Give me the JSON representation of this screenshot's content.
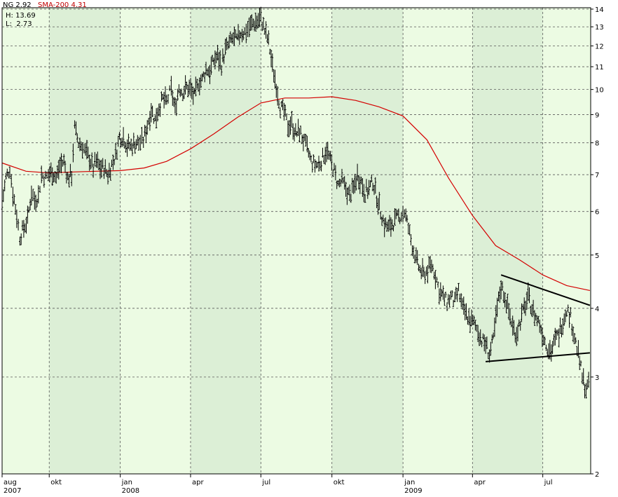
{
  "header": {
    "symbol": "NG 2.92",
    "sma": "SMA-200 4.31",
    "high": "H: 13.69",
    "low": "L:  2.73"
  },
  "colors": {
    "plot_bg_light": "#ecfbe3",
    "plot_bg_dark": "#dcefd6",
    "price": "#000000",
    "sma": "#d40000",
    "grid": "#5a5a5a",
    "trendline": "#000000"
  },
  "chart_data": {
    "type": "line",
    "title": "",
    "xlabel": "",
    "ylabel": "",
    "y_scale": "log",
    "ylim": [
      2,
      14
    ],
    "yticks": [
      2,
      3,
      4,
      5,
      6,
      7,
      8,
      9,
      10,
      11,
      12,
      13,
      14
    ],
    "x_range": [
      "2007-08-01",
      "2009-09-01"
    ],
    "x_month_labels": [
      {
        "label": "aug",
        "year": "2007",
        "date": "2007-08-01"
      },
      {
        "label": "okt",
        "year": "",
        "date": "2007-10-01"
      },
      {
        "label": "jan",
        "year": "2008",
        "date": "2008-01-01"
      },
      {
        "label": "apr",
        "year": "",
        "date": "2008-04-01"
      },
      {
        "label": "jul",
        "year": "",
        "date": "2008-07-01"
      },
      {
        "label": "okt",
        "year": "",
        "date": "2008-10-01"
      },
      {
        "label": "jan",
        "year": "2009",
        "date": "2009-01-01"
      },
      {
        "label": "apr",
        "year": "",
        "date": "2009-04-01"
      },
      {
        "label": "jul",
        "year": "",
        "date": "2009-07-01"
      }
    ],
    "shaded_bands": [
      [
        "2007-10-01",
        "2008-01-01"
      ],
      [
        "2008-04-01",
        "2008-07-01"
      ],
      [
        "2008-10-01",
        "2009-01-01"
      ],
      [
        "2009-04-01",
        "2009-07-01"
      ]
    ],
    "series": [
      {
        "name": "NG",
        "style": "daily OHLC bars",
        "points": [
          [
            "2007-08-01",
            6.2
          ],
          [
            "2007-08-06",
            6.9
          ],
          [
            "2007-08-11",
            7.2
          ],
          [
            "2007-08-15",
            6.5
          ],
          [
            "2007-08-20",
            5.9
          ],
          [
            "2007-08-24",
            5.4
          ],
          [
            "2007-08-29",
            5.6
          ],
          [
            "2007-09-03",
            5.8
          ],
          [
            "2007-09-08",
            6.5
          ],
          [
            "2007-09-12",
            6.3
          ],
          [
            "2007-09-17",
            6.4
          ],
          [
            "2007-09-21",
            7.0
          ],
          [
            "2007-09-26",
            6.9
          ],
          [
            "2007-09-30",
            7.0
          ],
          [
            "2007-10-05",
            7.1
          ],
          [
            "2007-10-10",
            6.9
          ],
          [
            "2007-10-15",
            7.3
          ],
          [
            "2007-10-20",
            7.4
          ],
          [
            "2007-10-25",
            6.9
          ],
          [
            "2007-10-30",
            7.0
          ],
          [
            "2007-11-03",
            8.5
          ],
          [
            "2007-11-08",
            8.0
          ],
          [
            "2007-11-13",
            7.9
          ],
          [
            "2007-11-17",
            7.7
          ],
          [
            "2007-11-22",
            7.5
          ],
          [
            "2007-11-27",
            7.2
          ],
          [
            "2007-12-01",
            7.4
          ],
          [
            "2007-12-06",
            7.2
          ],
          [
            "2007-12-11",
            7.2
          ],
          [
            "2007-12-16",
            7.0
          ],
          [
            "2007-12-21",
            7.3
          ],
          [
            "2007-12-26",
            7.6
          ],
          [
            "2007-12-31",
            8.2
          ],
          [
            "2008-01-05",
            8.2
          ],
          [
            "2008-01-10",
            7.9
          ],
          [
            "2008-01-15",
            7.9
          ],
          [
            "2008-01-20",
            8.0
          ],
          [
            "2008-01-25",
            8.0
          ],
          [
            "2008-01-31",
            8.1
          ],
          [
            "2008-02-05",
            8.6
          ],
          [
            "2008-02-10",
            9.2
          ],
          [
            "2008-02-15",
            8.8
          ],
          [
            "2008-02-20",
            9.3
          ],
          [
            "2008-02-25",
            9.6
          ],
          [
            "2008-03-01",
            9.5
          ],
          [
            "2008-03-07",
            10.0
          ],
          [
            "2008-03-12",
            9.2
          ],
          [
            "2008-03-17",
            10.1
          ],
          [
            "2008-03-22",
            9.9
          ],
          [
            "2008-03-27",
            10.1
          ],
          [
            "2008-04-01",
            10.0
          ],
          [
            "2008-04-06",
            9.7
          ],
          [
            "2008-04-11",
            10.3
          ],
          [
            "2008-04-16",
            10.4
          ],
          [
            "2008-04-21",
            10.9
          ],
          [
            "2008-04-26",
            10.8
          ],
          [
            "2008-05-01",
            11.3
          ],
          [
            "2008-05-06",
            11.5
          ],
          [
            "2008-05-11",
            11.1
          ],
          [
            "2008-05-16",
            11.8
          ],
          [
            "2008-05-21",
            12.1
          ],
          [
            "2008-05-26",
            12.4
          ],
          [
            "2008-05-31",
            12.3
          ],
          [
            "2008-06-05",
            12.7
          ],
          [
            "2008-06-10",
            12.7
          ],
          [
            "2008-06-16",
            13.0
          ],
          [
            "2008-06-21",
            13.2
          ],
          [
            "2008-06-26",
            13.3
          ],
          [
            "2008-07-01",
            13.5
          ],
          [
            "2008-07-06",
            12.8
          ],
          [
            "2008-07-11",
            12.2
          ],
          [
            "2008-07-16",
            11.0
          ],
          [
            "2008-07-21",
            10.2
          ],
          [
            "2008-07-26",
            9.3
          ],
          [
            "2008-07-31",
            9.1
          ],
          [
            "2008-08-05",
            8.6
          ],
          [
            "2008-08-10",
            8.7
          ],
          [
            "2008-08-15",
            8.3
          ],
          [
            "2008-08-20",
            8.4
          ],
          [
            "2008-08-25",
            8.1
          ],
          [
            "2008-08-30",
            7.8
          ],
          [
            "2008-09-04",
            7.4
          ],
          [
            "2008-09-09",
            7.3
          ],
          [
            "2008-09-14",
            7.3
          ],
          [
            "2008-09-19",
            7.5
          ],
          [
            "2008-09-24",
            7.8
          ],
          [
            "2008-09-29",
            7.4
          ],
          [
            "2008-10-04",
            7.1
          ],
          [
            "2008-10-09",
            6.7
          ],
          [
            "2008-10-14",
            6.8
          ],
          [
            "2008-10-19",
            6.6
          ],
          [
            "2008-10-24",
            6.4
          ],
          [
            "2008-10-29",
            6.6
          ],
          [
            "2008-11-03",
            7.0
          ],
          [
            "2008-11-08",
            6.8
          ],
          [
            "2008-11-13",
            6.5
          ],
          [
            "2008-11-18",
            6.6
          ],
          [
            "2008-11-23",
            6.8
          ],
          [
            "2008-11-28",
            6.4
          ],
          [
            "2008-12-03",
            6.0
          ],
          [
            "2008-12-08",
            5.7
          ],
          [
            "2008-12-13",
            5.6
          ],
          [
            "2008-12-18",
            5.7
          ],
          [
            "2008-12-23",
            5.8
          ],
          [
            "2008-12-28",
            5.9
          ],
          [
            "2009-01-03",
            6.0
          ],
          [
            "2009-01-08",
            5.6
          ],
          [
            "2009-01-13",
            5.2
          ],
          [
            "2009-01-18",
            4.9
          ],
          [
            "2009-01-23",
            4.7
          ],
          [
            "2009-01-28",
            4.6
          ],
          [
            "2009-02-02",
            4.7
          ],
          [
            "2009-02-07",
            4.8
          ],
          [
            "2009-02-12",
            4.6
          ],
          [
            "2009-02-17",
            4.3
          ],
          [
            "2009-02-22",
            4.2
          ],
          [
            "2009-02-27",
            4.1
          ],
          [
            "2009-03-04",
            4.2
          ],
          [
            "2009-03-09",
            4.1
          ],
          [
            "2009-03-14",
            4.3
          ],
          [
            "2009-03-19",
            4.0
          ],
          [
            "2009-03-24",
            3.9
          ],
          [
            "2009-03-29",
            3.8
          ],
          [
            "2009-04-03",
            3.75
          ],
          [
            "2009-04-08",
            3.65
          ],
          [
            "2009-04-13",
            3.5
          ],
          [
            "2009-04-18",
            3.45
          ],
          [
            "2009-04-23",
            3.3
          ],
          [
            "2009-04-28",
            3.5
          ],
          [
            "2009-05-03",
            4.0
          ],
          [
            "2009-05-08",
            4.4
          ],
          [
            "2009-05-13",
            4.2
          ],
          [
            "2009-05-18",
            3.95
          ],
          [
            "2009-05-23",
            3.7
          ],
          [
            "2009-05-28",
            3.6
          ],
          [
            "2009-06-02",
            3.8
          ],
          [
            "2009-06-07",
            4.0
          ],
          [
            "2009-06-12",
            4.2
          ],
          [
            "2009-06-17",
            4.0
          ],
          [
            "2009-06-22",
            3.85
          ],
          [
            "2009-06-27",
            3.75
          ],
          [
            "2009-07-02",
            3.55
          ],
          [
            "2009-07-07",
            3.4
          ],
          [
            "2009-07-12",
            3.35
          ],
          [
            "2009-07-17",
            3.5
          ],
          [
            "2009-07-22",
            3.6
          ],
          [
            "2009-07-27",
            3.8
          ],
          [
            "2009-08-01",
            4.0
          ],
          [
            "2009-08-06",
            3.85
          ],
          [
            "2009-08-11",
            3.55
          ],
          [
            "2009-08-16",
            3.3
          ],
          [
            "2009-08-21",
            3.0
          ],
          [
            "2009-08-26",
            2.85
          ],
          [
            "2009-08-31",
            2.92
          ]
        ]
      },
      {
        "name": "SMA-200",
        "style": "line",
        "points": [
          [
            "2007-08-01",
            7.35
          ],
          [
            "2007-09-01",
            7.1
          ],
          [
            "2007-10-01",
            7.05
          ],
          [
            "2007-11-01",
            7.08
          ],
          [
            "2007-12-01",
            7.1
          ],
          [
            "2008-01-01",
            7.12
          ],
          [
            "2008-02-01",
            7.2
          ],
          [
            "2008-03-01",
            7.4
          ],
          [
            "2008-04-01",
            7.8
          ],
          [
            "2008-05-01",
            8.3
          ],
          [
            "2008-06-01",
            8.9
          ],
          [
            "2008-07-01",
            9.45
          ],
          [
            "2008-08-01",
            9.65
          ],
          [
            "2008-09-01",
            9.65
          ],
          [
            "2008-10-01",
            9.7
          ],
          [
            "2008-11-01",
            9.55
          ],
          [
            "2008-12-01",
            9.3
          ],
          [
            "2009-01-01",
            8.95
          ],
          [
            "2009-02-01",
            8.1
          ],
          [
            "2009-03-01",
            6.9
          ],
          [
            "2009-04-01",
            5.9
          ],
          [
            "2009-05-01",
            5.2
          ],
          [
            "2009-06-01",
            4.9
          ],
          [
            "2009-07-01",
            4.6
          ],
          [
            "2009-08-01",
            4.4
          ],
          [
            "2009-08-31",
            4.31
          ]
        ]
      }
    ],
    "annotations": [
      {
        "type": "trendline",
        "from": [
          "2009-05-08",
          4.6
        ],
        "to": [
          "2009-08-31",
          4.05
        ]
      },
      {
        "type": "trendline",
        "from": [
          "2009-04-18",
          3.2
        ],
        "to": [
          "2009-08-31",
          3.32
        ]
      }
    ]
  }
}
